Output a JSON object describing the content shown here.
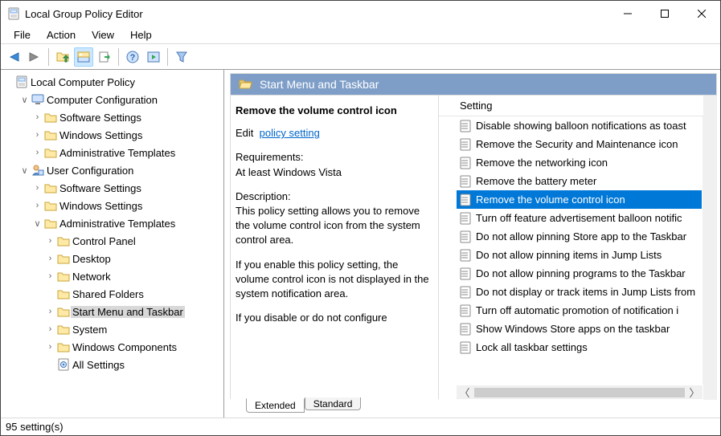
{
  "window": {
    "title": "Local Group Policy Editor"
  },
  "menubar": [
    "File",
    "Action",
    "View",
    "Help"
  ],
  "tree": {
    "root": "Local Computer Policy",
    "nodes": [
      {
        "label": "Computer Configuration",
        "icon": "computer",
        "depth": 1,
        "twist": "open"
      },
      {
        "label": "Software Settings",
        "icon": "folder",
        "depth": 2,
        "twist": "closed"
      },
      {
        "label": "Windows Settings",
        "icon": "folder",
        "depth": 2,
        "twist": "closed"
      },
      {
        "label": "Administrative Templates",
        "icon": "folder",
        "depth": 2,
        "twist": "closed"
      },
      {
        "label": "User Configuration",
        "icon": "user",
        "depth": 1,
        "twist": "open"
      },
      {
        "label": "Software Settings",
        "icon": "folder",
        "depth": 2,
        "twist": "closed"
      },
      {
        "label": "Windows Settings",
        "icon": "folder",
        "depth": 2,
        "twist": "closed"
      },
      {
        "label": "Administrative Templates",
        "icon": "folder",
        "depth": 2,
        "twist": "open"
      },
      {
        "label": "Control Panel",
        "icon": "folder",
        "depth": 3,
        "twist": "closed"
      },
      {
        "label": "Desktop",
        "icon": "folder",
        "depth": 3,
        "twist": "closed"
      },
      {
        "label": "Network",
        "icon": "folder",
        "depth": 3,
        "twist": "closed"
      },
      {
        "label": "Shared Folders",
        "icon": "folder",
        "depth": 3,
        "twist": "none"
      },
      {
        "label": "Start Menu and Taskbar",
        "icon": "folder",
        "depth": 3,
        "twist": "closed",
        "selected": true
      },
      {
        "label": "System",
        "icon": "folder",
        "depth": 3,
        "twist": "closed"
      },
      {
        "label": "Windows Components",
        "icon": "folder",
        "depth": 3,
        "twist": "closed"
      },
      {
        "label": "All Settings",
        "icon": "settings",
        "depth": 3,
        "twist": "none"
      }
    ]
  },
  "rightHeader": "Start Menu and Taskbar",
  "detail": {
    "title": "Remove the volume control icon",
    "editLabel": "Edit",
    "editLink": "policy setting ",
    "reqLabel": "Requirements:",
    "reqText": "At least Windows Vista",
    "descLabel": "Description:",
    "descText1": "This policy setting allows you to remove the volume control icon from the system control area.",
    "descText2": "If you enable this policy setting, the volume control icon is not displayed in the system notification area.",
    "descText3": "If you disable or do not configure"
  },
  "listHeader": "Setting",
  "listItems": [
    "Disable showing balloon notifications as toast",
    "Remove the Security and Maintenance icon",
    "Remove the networking icon",
    "Remove the battery meter",
    "Remove the volume control icon",
    "Turn off feature advertisement balloon notific",
    "Do not allow pinning Store app to the Taskbar",
    "Do not allow pinning items in Jump Lists",
    "Do not allow pinning programs to the Taskbar",
    "Do not display or track items in Jump Lists from",
    "Turn off automatic promotion of notification i",
    "Show Windows Store apps on the taskbar",
    "Lock all taskbar settings"
  ],
  "selectedListIndex": 4,
  "tabs": {
    "extended": "Extended",
    "standard": "Standard"
  },
  "status": "95 setting(s)",
  "colors": {
    "accent_header_bg": "#7e9ec8",
    "selection_bg": "#0078d7",
    "tree_selection_bg": "#d8d8d8",
    "link": "#0066cc",
    "folder_fill": "#ffe9a6",
    "folder_stroke": "#caa53a",
    "border_dark": "#9c9c9c",
    "border_light": "#dcdcdc"
  }
}
